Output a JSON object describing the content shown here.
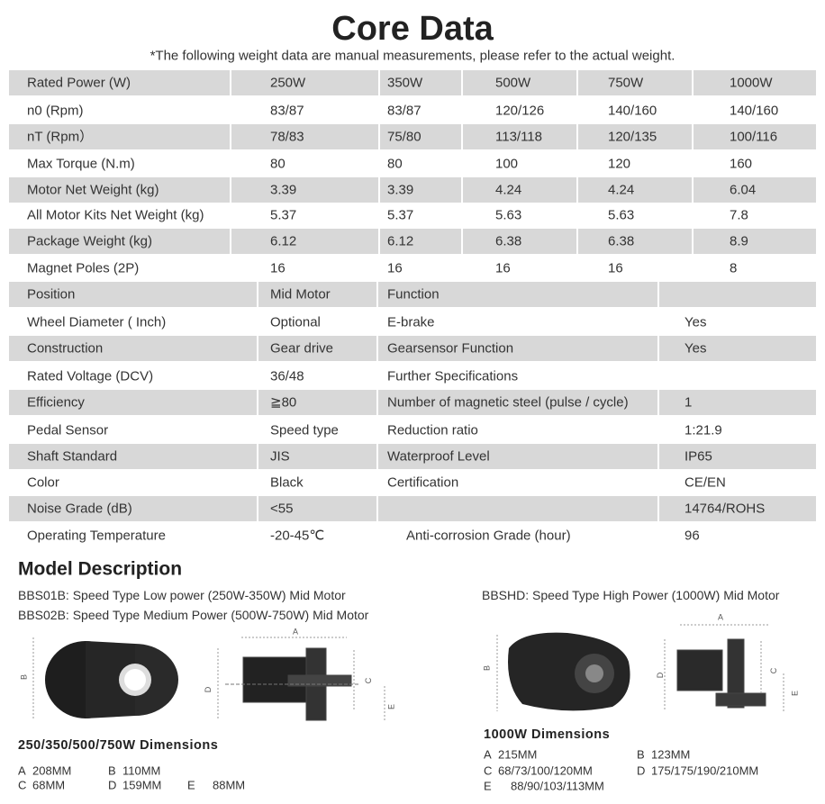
{
  "header": {
    "title": "Core Data",
    "subtitle": "*The following weight data are manual measurements, please refer to the actual weight."
  },
  "table": {
    "rows": [
      [
        "Rated Power  (W)",
        "250W",
        "350W",
        "500W",
        "750W",
        "1000W"
      ],
      [
        "n0  (Rpm)",
        "83/87",
        "83/87",
        "120/126",
        "140/160",
        "140/160"
      ],
      [
        "nT  (Rpm）",
        "78/83",
        "75/80",
        "113/118",
        "120/135",
        "100/116"
      ],
      [
        "Max Torque (N.m)",
        "80",
        "80",
        "100",
        "120",
        "160"
      ],
      [
        "Motor Net Weight (kg)",
        "3.39",
        "3.39",
        "4.24",
        "4.24",
        "6.04"
      ],
      [
        "All Motor Kits Net Weight (kg)",
        "5.37",
        "5.37",
        "5.63",
        "5.63",
        "7.8"
      ],
      [
        "Package Weight (kg)",
        "6.12",
        "6.12",
        "6.38",
        "6.38",
        "8.9"
      ],
      [
        "Magnet Poles  (2P)",
        "16",
        "16",
        "16",
        "16",
        "8"
      ]
    ],
    "spec_rows": [
      {
        "label": "Position",
        "value": "Mid Motor",
        "label2": "Function"
      },
      {
        "label": "Wheel Diameter ( Inch)",
        "value": "Optional",
        "label2": "E-brake",
        "value2": "Yes"
      },
      {
        "label": "Construction",
        "value": "Gear drive",
        "label2": "Gearsensor Function",
        "value2": "Yes"
      },
      {
        "label": "Rated Voltage  (DCV)",
        "value": "36/48",
        "label2": "Further Specifications"
      },
      {
        "label": "Efficiency",
        "value": "≧80",
        "label2": "Number of magnetic steel (pulse / cycle)",
        "value2": "1"
      },
      {
        "label": "Pedal Sensor",
        "value": "Speed type",
        "label2": "Reduction ratio",
        "value2": "1:21.9"
      },
      {
        "label": "Shaft Standard",
        "value": "JIS",
        "label2": "Waterproof Level",
        "value2": "IP65"
      },
      {
        "label": "Color",
        "value": "Black",
        "label2": "Certification",
        "value2": "CE/EN"
      },
      {
        "label": "Noise Grade (dB)",
        "value": "<55",
        "value2": "14764/ROHS"
      },
      {
        "label": "Operating Temperature",
        "value": "-20-45℃",
        "label2": "Anti-corrosion Grade  (hour)",
        "value2": "96"
      }
    ]
  },
  "model": {
    "heading": "Model Description",
    "lines": [
      "BBS01B: Speed Type Low power (250W-350W) Mid Motor",
      "BBS02B: Speed Type Medium Power (500W-750W) Mid Motor",
      "BBSHD: Speed Type High Power (1000W) Mid Motor"
    ],
    "left": {
      "title": "250/350/500/750W  Dimensions",
      "items": [
        {
          "letter": "A",
          "value": "208MM"
        },
        {
          "letter": "B",
          "value": "110MM"
        },
        {
          "letter": "C",
          "value": "68MM"
        },
        {
          "letter": "D",
          "value": "159MM"
        },
        {
          "letter": "E",
          "value": "88MM"
        }
      ],
      "drawing_labels": [
        "B",
        "A",
        "D",
        "C",
        "E"
      ]
    },
    "right": {
      "title": "1000W  Dimensions",
      "items": [
        {
          "letter": "A",
          "value": "215MM"
        },
        {
          "letter": "B",
          "value": "123MM"
        },
        {
          "letter": "C",
          "value": "68/73/100/120MM"
        },
        {
          "letter": "D",
          "value": "175/175/190/210MM"
        },
        {
          "letter": "E",
          "value": "88/90/103/113MM"
        }
      ],
      "drawing_labels": [
        "B",
        "A",
        "D",
        "C",
        "E"
      ]
    }
  }
}
